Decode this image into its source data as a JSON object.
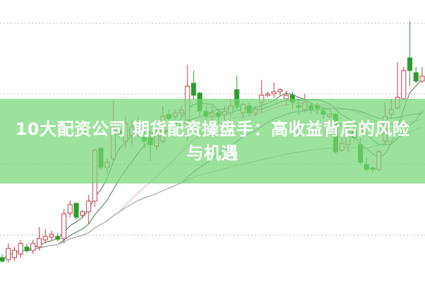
{
  "title": "10大配资公司 期货配资操盘手：高收益背后的风险与机遇",
  "colors": {
    "banner": "#76d676",
    "up_candle": "#c0394b",
    "down_candle": "#2a9d2a",
    "grid": "#bbbbbb",
    "ma_lines": [
      "#4d6e4d",
      "#3f7f3f",
      "#e7a3d8",
      "#3f7f9a",
      "#aaaaaa"
    ]
  },
  "chart_data": {
    "type": "candlestick",
    "title": "",
    "xlabel": "",
    "ylabel": "",
    "ylim": [
      0.32,
      4.33
    ],
    "grid": true,
    "gridlines": [
      1,
      2,
      3,
      4
    ],
    "legend": "none",
    "moving_averages": [
      5,
      10,
      20,
      30,
      60
    ],
    "candles_ochl_order": "open, close, high, low",
    "candles": [
      [
        0.68,
        0.63,
        0.73,
        0.61
      ],
      [
        0.65,
        0.81,
        0.88,
        0.61
      ],
      [
        0.68,
        0.78,
        0.83,
        0.63
      ],
      [
        0.73,
        0.88,
        0.93,
        0.68
      ],
      [
        0.83,
        0.78,
        0.88,
        0.75
      ],
      [
        0.78,
        0.88,
        0.93,
        0.73
      ],
      [
        0.83,
        0.95,
        1.11,
        0.78
      ],
      [
        0.93,
        0.98,
        1.08,
        0.88
      ],
      [
        0.97,
        1.01,
        1.06,
        0.93
      ],
      [
        0.98,
        0.94,
        1.03,
        0.91
      ],
      [
        0.95,
        1.3,
        1.37,
        0.88
      ],
      [
        1.31,
        1.43,
        1.49,
        1.25
      ],
      [
        1.45,
        1.25,
        1.45,
        1.21
      ],
      [
        1.28,
        1.33,
        1.35,
        1.25
      ],
      [
        1.33,
        1.48,
        1.57,
        1.15
      ],
      [
        1.48,
        2.2,
        2.23,
        1.4
      ],
      [
        2.23,
        1.96,
        2.25,
        1.93
      ],
      [
        1.96,
        2.03,
        2.08,
        1.88
      ],
      [
        2.08,
        2.53,
        2.91,
        2.05
      ],
      [
        2.48,
        2.43,
        2.58,
        2.38
      ],
      [
        2.33,
        2.58,
        2.68,
        2.23
      ],
      [
        2.41,
        2.53,
        2.63,
        2.28
      ],
      [
        2.5,
        2.55,
        2.68,
        2.38
      ],
      [
        2.38,
        2.33,
        2.48,
        2.23
      ],
      [
        2.38,
        2.28,
        2.48,
        2.05
      ],
      [
        2.26,
        2.43,
        2.53,
        2.21
      ],
      [
        2.33,
        2.68,
        2.83,
        2.28
      ],
      [
        2.71,
        2.65,
        2.78,
        2.58
      ],
      [
        2.68,
        2.73,
        2.78,
        2.63
      ],
      [
        2.73,
        2.77,
        2.83,
        2.68
      ],
      [
        2.63,
        3.11,
        3.41,
        2.33
      ],
      [
        3.15,
        2.98,
        3.33,
        2.93
      ],
      [
        3.01,
        2.76,
        3.03,
        2.68
      ],
      [
        2.75,
        2.68,
        2.83,
        2.63
      ],
      [
        2.68,
        2.73,
        2.83,
        2.61
      ],
      [
        2.73,
        2.68,
        2.78,
        2.58
      ],
      [
        2.7,
        2.75,
        2.83,
        2.63
      ],
      [
        2.73,
        2.83,
        2.93,
        2.68
      ],
      [
        3.06,
        2.83,
        3.26,
        2.78
      ],
      [
        2.73,
        2.85,
        2.88,
        2.65
      ],
      [
        2.83,
        2.73,
        2.88,
        2.68
      ],
      [
        2.73,
        2.78,
        2.83,
        2.68
      ],
      [
        2.88,
        2.98,
        3.2,
        2.73
      ],
      [
        2.98,
        3.0,
        3.03,
        2.95
      ],
      [
        3.0,
        3.03,
        3.16,
        2.95
      ],
      [
        3.03,
        3.06,
        3.08,
        2.98
      ],
      [
        2.93,
        2.98,
        3.05,
        2.83
      ],
      [
        2.98,
        2.88,
        3.03,
        2.78
      ],
      [
        2.83,
        2.81,
        2.93,
        2.7
      ],
      [
        2.78,
        2.88,
        3.0,
        2.73
      ],
      [
        2.83,
        2.78,
        2.88,
        2.71
      ],
      [
        2.83,
        2.8,
        2.88,
        2.71
      ],
      [
        2.76,
        2.71,
        2.81,
        2.65
      ],
      [
        2.68,
        2.71,
        2.73,
        2.65
      ],
      [
        2.71,
        2.18,
        2.73,
        2.15
      ],
      [
        2.2,
        2.3,
        2.38,
        2.18
      ],
      [
        2.28,
        2.48,
        2.58,
        2.18
      ],
      [
        2.48,
        2.38,
        2.55,
        2.33
      ],
      [
        2.28,
        2.03,
        2.38,
        2.0
      ],
      [
        2.0,
        1.93,
        2.1,
        1.9
      ],
      [
        1.95,
        1.93,
        1.98,
        1.88
      ],
      [
        1.93,
        2.18,
        2.2,
        1.9
      ],
      [
        2.33,
        2.68,
        2.88,
        2.28
      ],
      [
        2.71,
        2.78,
        2.93,
        2.65
      ],
      [
        2.8,
        2.95,
        3.45,
        2.78
      ],
      [
        2.93,
        3.33,
        3.38,
        2.9
      ],
      [
        3.51,
        3.33,
        4.03,
        3.11
      ],
      [
        3.3,
        3.18,
        3.38,
        3.15
      ],
      [
        3.18,
        3.25,
        3.38,
        3.15
      ]
    ]
  }
}
